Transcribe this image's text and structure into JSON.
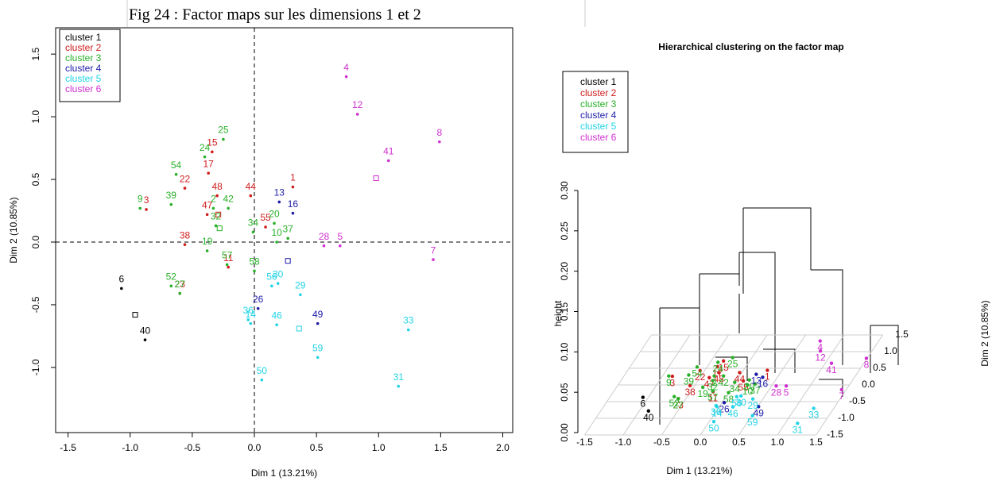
{
  "caption": "Fig 24 : Factor maps  sur les dimensions 1 et 2",
  "chart_data": [
    {
      "type": "scatter",
      "xlabel": "Dim 1 (13.21%)",
      "ylabel": "Dim 2 (10.85%)",
      "xlim": [
        -1.6,
        2.08
      ],
      "ylim": [
        -1.52,
        1.71
      ],
      "xticks": [
        -1.5,
        {
          "value": -1,
          "label": "-1.0"
        },
        -0.5,
        {
          "value": 0,
          "label": "0.0"
        },
        0.5,
        {
          "value": 1,
          "label": "1.0"
        },
        1.5,
        {
          "value": 2,
          "label": "2.0"
        }
      ],
      "yticks": [
        {
          "value": -1,
          "label": "-1.0"
        },
        -0.5,
        {
          "value": 0,
          "label": "0.0"
        },
        0.5,
        {
          "value": 1,
          "label": "1.0"
        },
        1.5
      ],
      "ref_lines": {
        "x": 0,
        "y": 0
      },
      "legend": "topleft",
      "series": [
        {
          "name": "cluster 1",
          "color": "#000000",
          "labels": [
            "6",
            "40"
          ],
          "x": [
            -1.07,
            -0.88
          ],
          "y": [
            -0.37,
            -0.78
          ],
          "center": [
            -0.96,
            -0.58
          ]
        },
        {
          "name": "cluster 2",
          "color": "#d01c1c",
          "labels": [
            "3",
            "22",
            "15",
            "17",
            "48",
            "47",
            "38",
            "11",
            "23",
            "44",
            "55",
            "1"
          ],
          "x": [
            -0.87,
            -0.56,
            -0.34,
            -0.37,
            -0.3,
            -0.38,
            -0.56,
            -0.21,
            -0.6,
            -0.03,
            0.09,
            0.31
          ],
          "y": [
            0.26,
            0.43,
            0.72,
            0.55,
            0.37,
            0.22,
            -0.02,
            -0.2,
            -0.41,
            0.37,
            0.12,
            0.44
          ],
          "center": [
            -0.29,
            0.22
          ]
        },
        {
          "name": "cluster 3",
          "color": "#28b028",
          "labels": [
            "25",
            "24",
            "54",
            "39",
            "9",
            "2",
            "42",
            "32",
            "19",
            "57",
            "52",
            "58",
            "34",
            "20",
            "10",
            "37",
            "27"
          ],
          "x": [
            -0.25,
            -0.4,
            -0.63,
            -0.67,
            -0.92,
            -0.33,
            -0.21,
            -0.31,
            -0.38,
            -0.22,
            -0.67,
            0.0,
            -0.01,
            0.16,
            0.18,
            0.27,
            -0.6
          ],
          "y": [
            0.82,
            0.68,
            0.54,
            0.3,
            0.27,
            0.27,
            0.27,
            0.13,
            -0.07,
            -0.18,
            -0.35,
            -0.23,
            0.08,
            0.15,
            0.0,
            0.03,
            -0.41
          ],
          "center": [
            -0.28,
            0.11
          ]
        },
        {
          "name": "cluster 4",
          "color": "#1c1ca8",
          "labels": [
            "13",
            "16",
            "26",
            "49"
          ],
          "x": [
            0.2,
            0.31,
            0.03,
            0.51
          ],
          "y": [
            0.32,
            0.23,
            -0.53,
            -0.65
          ],
          "center": [
            0.27,
            -0.15
          ]
        },
        {
          "name": "cluster 5",
          "color": "#22d3e6",
          "labels": [
            "56",
            "30",
            "29",
            "36",
            "14",
            "46",
            "33",
            "59",
            "50",
            "31"
          ],
          "x": [
            0.14,
            0.19,
            0.37,
            -0.05,
            -0.03,
            0.18,
            1.24,
            0.51,
            0.06,
            1.16
          ],
          "y": [
            -0.35,
            -0.33,
            -0.42,
            -0.62,
            -0.65,
            -0.66,
            -0.7,
            -0.92,
            -1.1,
            -1.15
          ],
          "center": [
            0.36,
            -0.69
          ]
        },
        {
          "name": "cluster 6",
          "color": "#d030d0",
          "labels": [
            "4",
            "12",
            "8",
            "41",
            "28",
            "5",
            "7"
          ],
          "x": [
            0.74,
            0.83,
            1.49,
            1.08,
            0.56,
            0.69,
            1.44
          ],
          "y": [
            1.32,
            1.02,
            0.8,
            0.65,
            -0.03,
            -0.03,
            -0.14
          ],
          "center": [
            0.98,
            0.51
          ]
        }
      ]
    },
    {
      "type": "dendrogram3d",
      "title": "Hierarchical clustering on the factor map",
      "xlabel": "Dim 1 (13.21%)",
      "ylabel": "Dim 2 (10.85%)",
      "zlabel": "height",
      "xlim": [
        -1.5,
        1.5
      ],
      "xticks": [
        -1.5,
        {
          "value": -1,
          "label": "-1.0"
        },
        -0.5,
        {
          "value": 0,
          "label": "0.0"
        },
        0.5,
        {
          "value": 1,
          "label": "1.0"
        },
        1.5
      ],
      "ylim": [
        -1.5,
        1.5
      ],
      "yticks": [
        -1.5,
        {
          "value": -1,
          "label": "-1.0"
        },
        -0.5,
        {
          "value": 0,
          "label": "0.0"
        },
        0.5,
        {
          "value": 1,
          "label": "1.0"
        },
        1.5
      ],
      "zlim": [
        0,
        0.3
      ],
      "zticks": [
        {
          "value": 0,
          "label": "0.00"
        },
        0.05,
        {
          "value": 0.1,
          "label": "0.10"
        },
        0.15,
        {
          "value": 0.2,
          "label": "0.20"
        },
        0.25,
        {
          "value": 0.3,
          "label": "0.30"
        }
      ],
      "legend": "topleft",
      "series": [
        {
          "name": "cluster 1",
          "color": "#000000"
        },
        {
          "name": "cluster 2",
          "color": "#d01c1c"
        },
        {
          "name": "cluster 3",
          "color": "#28b028"
        },
        {
          "name": "cluster 4",
          "color": "#1c1ca8"
        },
        {
          "name": "cluster 5",
          "color": "#22d3e6"
        },
        {
          "name": "cluster 6",
          "color": "#d030d0"
        }
      ]
    }
  ]
}
